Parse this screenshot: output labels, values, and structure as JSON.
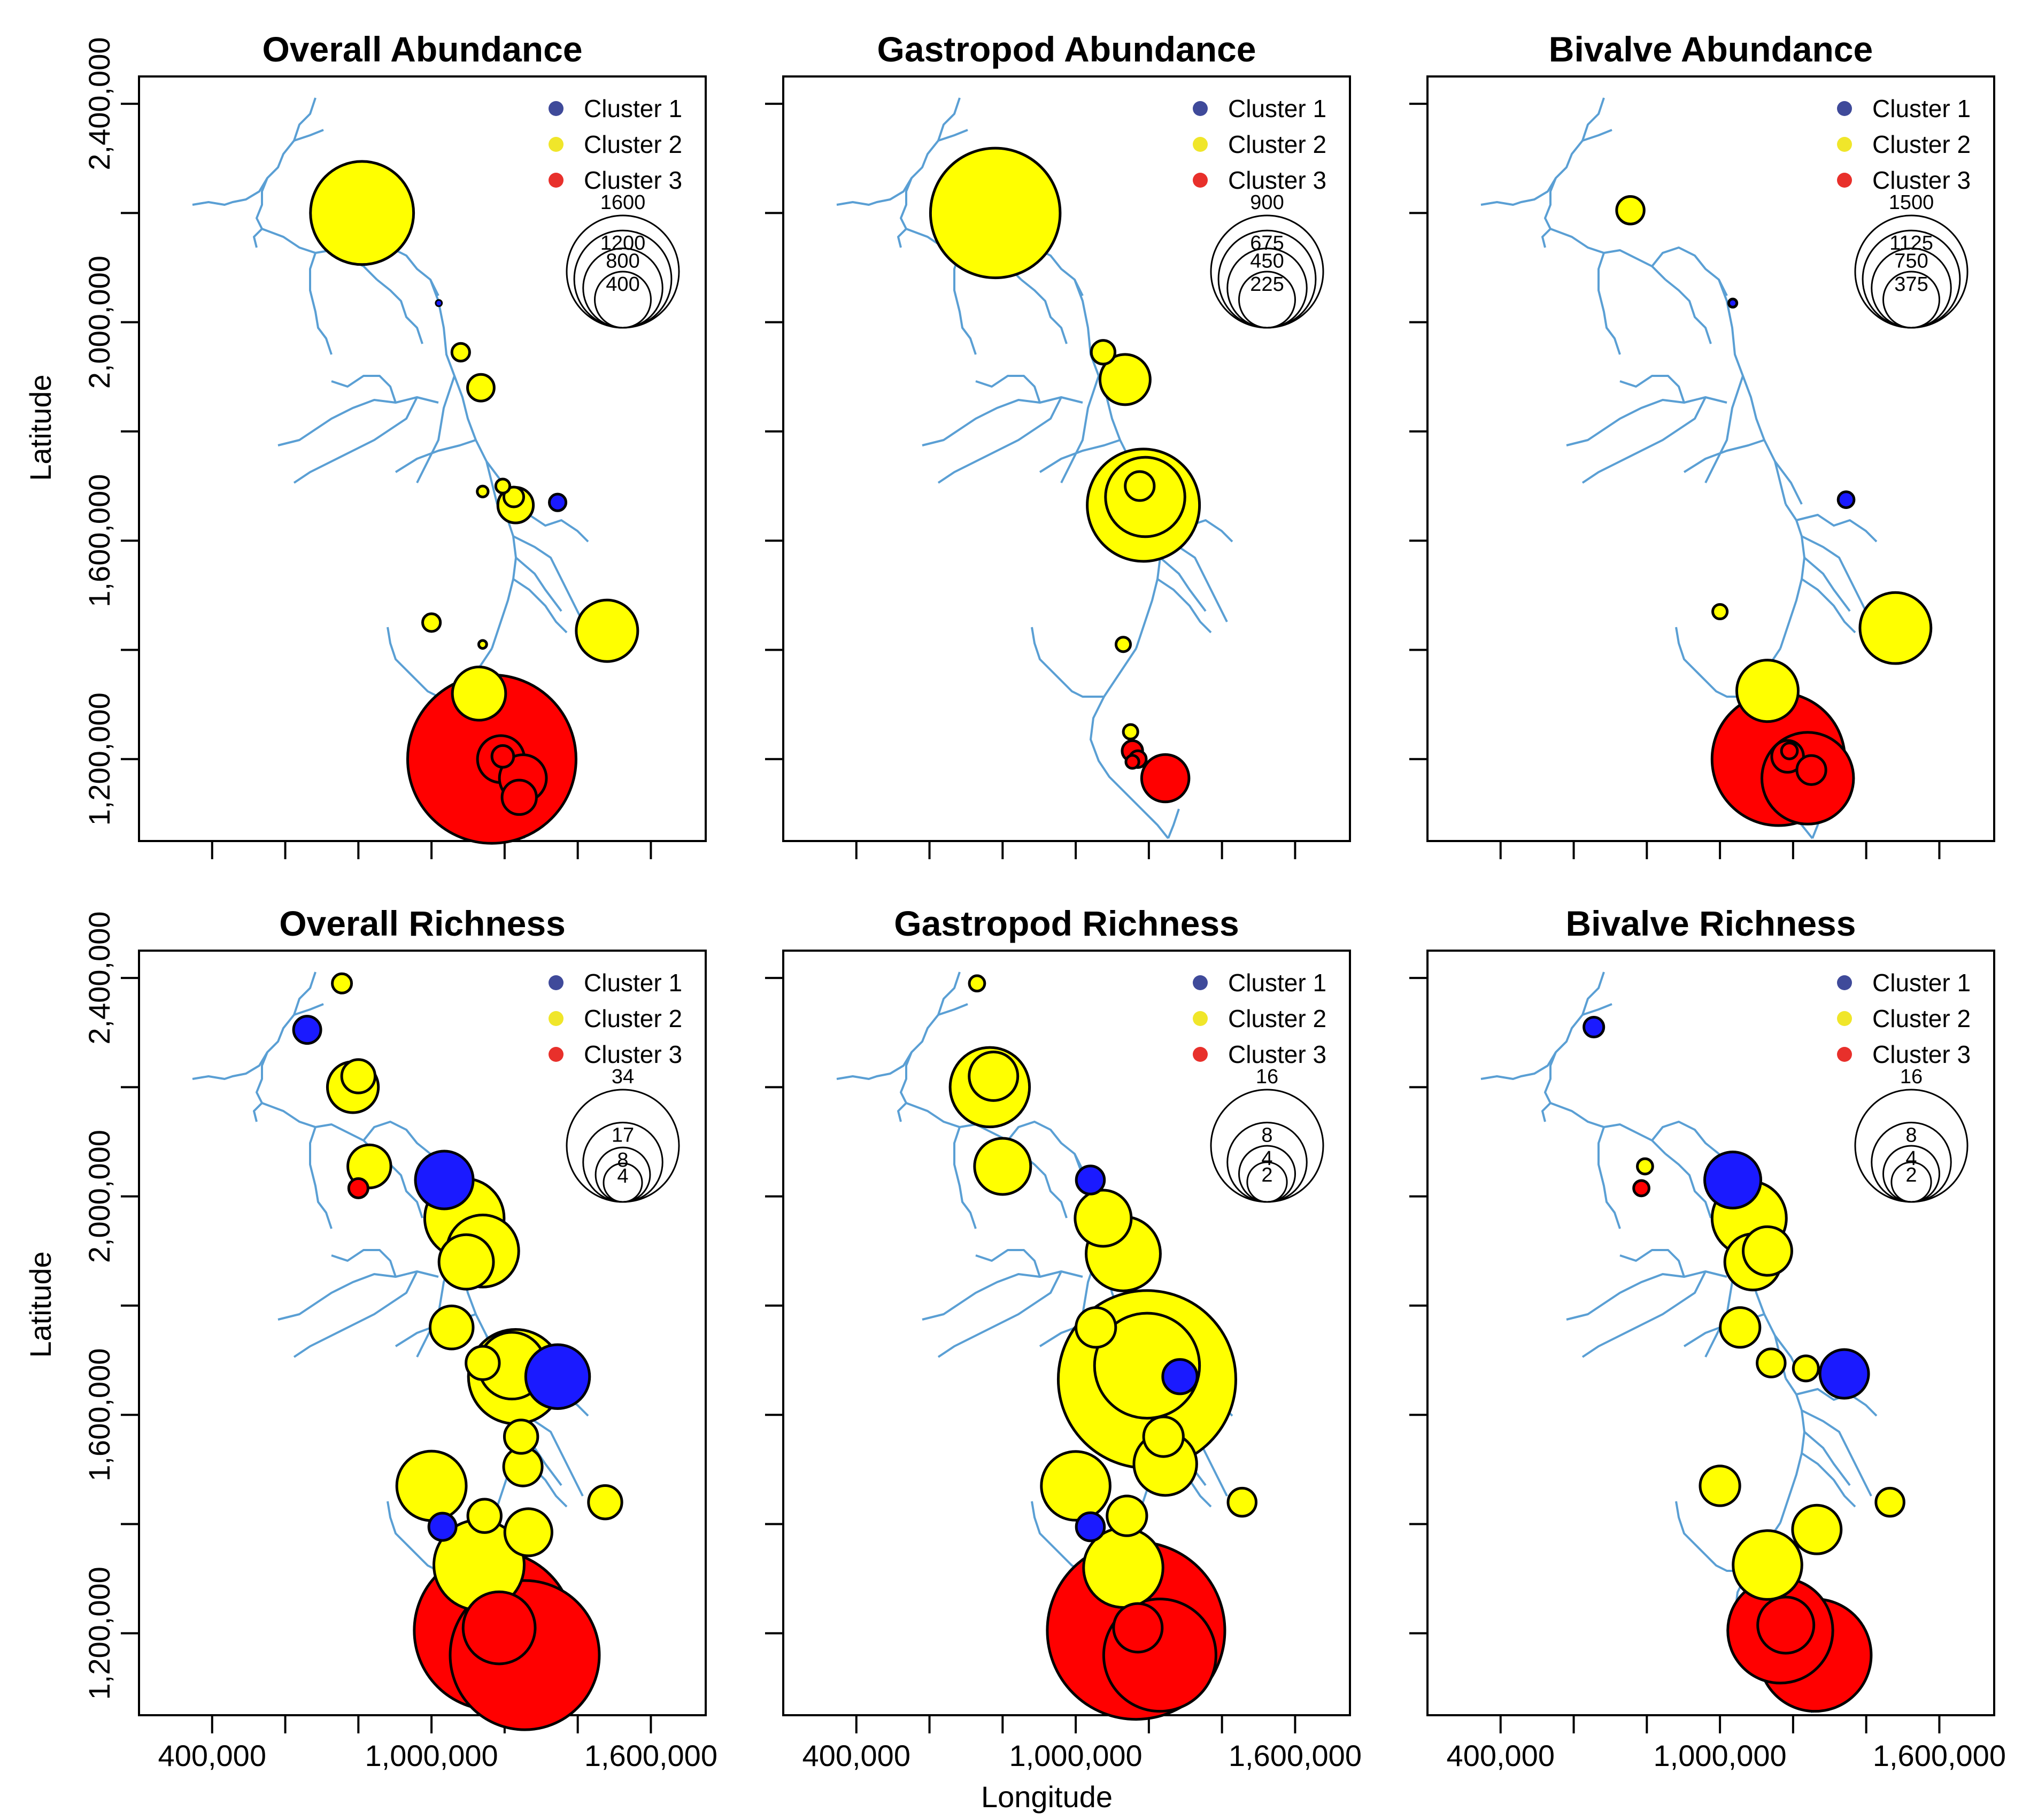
{
  "figure": {
    "xlabel": "Longitude",
    "ylabel": "Latitude"
  },
  "colors": {
    "cluster_1": "#1a1aff",
    "cluster_1_legend": "#3f4a9a",
    "cluster_2": "#ffff00",
    "cluster_2_legend": "#f0e62a",
    "cluster_3": "#ff0000",
    "cluster_3_legend": "#e8302b",
    "river": "#5a9fd4"
  },
  "x_ticks": [
    "400,000",
    "1,000,000",
    "1,600,000"
  ],
  "y_ticks": [
    "2,400,000",
    "2,000,000",
    "1,600,000",
    "1,200,000"
  ],
  "chart_data": [
    {
      "type": "scatter",
      "title": "Overall Abundance",
      "legend": [
        "Cluster 1",
        "Cluster 2",
        "Cluster 3"
      ],
      "size_legend": [
        "1600",
        "1200",
        "800",
        "400"
      ],
      "xlim": [
        200000,
        1750000
      ],
      "ylim": [
        1050000,
        2450000
      ],
      "points": [
        {
          "x": 810000,
          "y": 2200000,
          "v": 1350,
          "c": 2
        },
        {
          "x": 1020000,
          "y": 2035000,
          "v": 5,
          "c": 1
        },
        {
          "x": 1080000,
          "y": 1945000,
          "v": 40,
          "c": 2
        },
        {
          "x": 1135000,
          "y": 1880000,
          "v": 90,
          "c": 2
        },
        {
          "x": 1140000,
          "y": 1690000,
          "v": 15,
          "c": 2
        },
        {
          "x": 1195000,
          "y": 1700000,
          "v": 25,
          "c": 2
        },
        {
          "x": 1230000,
          "y": 1665000,
          "v": 160,
          "c": 2
        },
        {
          "x": 1225000,
          "y": 1680000,
          "v": 50,
          "c": 2
        },
        {
          "x": 1345000,
          "y": 1670000,
          "v": 35,
          "c": 1
        },
        {
          "x": 1000000,
          "y": 1450000,
          "v": 40,
          "c": 2
        },
        {
          "x": 1480000,
          "y": 1435000,
          "v": 480,
          "c": 2
        },
        {
          "x": 1140000,
          "y": 1410000,
          "v": 8,
          "c": 2
        },
        {
          "x": 1130000,
          "y": 1320000,
          "v": 360,
          "c": 2
        },
        {
          "x": 1165000,
          "y": 1200000,
          "v": 3600,
          "c": 3
        },
        {
          "x": 1190000,
          "y": 1200000,
          "v": 280,
          "c": 3
        },
        {
          "x": 1195000,
          "y": 1205000,
          "v": 60,
          "c": 3
        },
        {
          "x": 1250000,
          "y": 1165000,
          "v": 280,
          "c": 3
        },
        {
          "x": 1240000,
          "y": 1130000,
          "v": 150,
          "c": 3
        }
      ]
    },
    {
      "type": "scatter",
      "title": "Gastropod Abundance",
      "legend": [
        "Cluster 1",
        "Cluster 2",
        "Cluster 3"
      ],
      "size_legend": [
        "900",
        "675",
        "450",
        "225"
      ],
      "xlim": [
        200000,
        1750000
      ],
      "ylim": [
        1050000,
        2450000
      ],
      "points": [
        {
          "x": 780000,
          "y": 2200000,
          "v": 1200,
          "c": 2
        },
        {
          "x": 1075000,
          "y": 1945000,
          "v": 40,
          "c": 2
        },
        {
          "x": 1135000,
          "y": 1895000,
          "v": 180,
          "c": 2
        },
        {
          "x": 1185000,
          "y": 1665000,
          "v": 900,
          "c": 2
        },
        {
          "x": 1190000,
          "y": 1680000,
          "v": 450,
          "c": 2
        },
        {
          "x": 1175000,
          "y": 1700000,
          "v": 60,
          "c": 2
        },
        {
          "x": 1130000,
          "y": 1410000,
          "v": 15,
          "c": 2
        },
        {
          "x": 1150000,
          "y": 1250000,
          "v": 15,
          "c": 2
        },
        {
          "x": 1155000,
          "y": 1215000,
          "v": 30,
          "c": 3
        },
        {
          "x": 1170000,
          "y": 1200000,
          "v": 20,
          "c": 3
        },
        {
          "x": 1155000,
          "y": 1195000,
          "v": 12,
          "c": 3
        },
        {
          "x": 1245000,
          "y": 1165000,
          "v": 160,
          "c": 3
        }
      ]
    },
    {
      "type": "scatter",
      "title": "Bivalve Abundance",
      "legend": [
        "Cluster 1",
        "Cluster 2",
        "Cluster 3"
      ],
      "size_legend": [
        "1500",
        "1125",
        "750",
        "375"
      ],
      "xlim": [
        200000,
        1750000
      ],
      "ylim": [
        1050000,
        2450000
      ],
      "points": [
        {
          "x": 755000,
          "y": 2205000,
          "v": 90,
          "c": 2
        },
        {
          "x": 1035000,
          "y": 2035000,
          "v": 8,
          "c": 1
        },
        {
          "x": 1345000,
          "y": 1675000,
          "v": 30,
          "c": 1
        },
        {
          "x": 1000000,
          "y": 1470000,
          "v": 25,
          "c": 2
        },
        {
          "x": 1480000,
          "y": 1440000,
          "v": 600,
          "c": 2
        },
        {
          "x": 1130000,
          "y": 1325000,
          "v": 450,
          "c": 2
        },
        {
          "x": 1160000,
          "y": 1200000,
          "v": 2100,
          "c": 3
        },
        {
          "x": 1240000,
          "y": 1165000,
          "v": 1000,
          "c": 3
        },
        {
          "x": 1185000,
          "y": 1205000,
          "v": 120,
          "c": 3
        },
        {
          "x": 1190000,
          "y": 1215000,
          "v": 30,
          "c": 3
        },
        {
          "x": 1250000,
          "y": 1180000,
          "v": 100,
          "c": 3
        }
      ]
    },
    {
      "type": "scatter",
      "title": "Overall Richness",
      "legend": [
        "Cluster 1",
        "Cluster 2",
        "Cluster 3"
      ],
      "size_legend": [
        "34",
        "17",
        "8",
        "4"
      ],
      "xlim": [
        200000,
        1750000
      ],
      "ylim": [
        1050000,
        2450000
      ],
      "points": [
        {
          "x": 755000,
          "y": 2390000,
          "v": 1,
          "c": 2
        },
        {
          "x": 660000,
          "y": 2305000,
          "v": 2,
          "c": 1
        },
        {
          "x": 785000,
          "y": 2200000,
          "v": 7,
          "c": 2
        },
        {
          "x": 800000,
          "y": 2220000,
          "v": 3,
          "c": 2
        },
        {
          "x": 830000,
          "y": 2055000,
          "v": 5,
          "c": 2
        },
        {
          "x": 800000,
          "y": 2015000,
          "v": 1,
          "c": 3
        },
        {
          "x": 1035000,
          "y": 2030000,
          "v": 9,
          "c": 1
        },
        {
          "x": 1090000,
          "y": 1960000,
          "v": 17,
          "c": 2
        },
        {
          "x": 1140000,
          "y": 1900000,
          "v": 14,
          "c": 2
        },
        {
          "x": 1095000,
          "y": 1880000,
          "v": 8,
          "c": 2
        },
        {
          "x": 1055000,
          "y": 1760000,
          "v": 5,
          "c": 2
        },
        {
          "x": 1140000,
          "y": 1695000,
          "v": 3,
          "c": 2
        },
        {
          "x": 1230000,
          "y": 1670000,
          "v": 24,
          "c": 2
        },
        {
          "x": 1220000,
          "y": 1690000,
          "v": 12,
          "c": 2
        },
        {
          "x": 1345000,
          "y": 1670000,
          "v": 11,
          "c": 1
        },
        {
          "x": 1245000,
          "y": 1560000,
          "v": 3,
          "c": 2
        },
        {
          "x": 1250000,
          "y": 1505000,
          "v": 4,
          "c": 2
        },
        {
          "x": 1000000,
          "y": 1470000,
          "v": 13,
          "c": 2
        },
        {
          "x": 1475000,
          "y": 1440000,
          "v": 3,
          "c": 2
        },
        {
          "x": 1145000,
          "y": 1415000,
          "v": 3,
          "c": 2
        },
        {
          "x": 1030000,
          "y": 1395000,
          "v": 2,
          "c": 1
        },
        {
          "x": 1265000,
          "y": 1385000,
          "v": 6,
          "c": 2
        },
        {
          "x": 1130000,
          "y": 1325000,
          "v": 22,
          "c": 2
        },
        {
          "x": 1170000,
          "y": 1205000,
          "v": 68,
          "c": 3
        },
        {
          "x": 1255000,
          "y": 1160000,
          "v": 60,
          "c": 3
        },
        {
          "x": 1185000,
          "y": 1210000,
          "v": 14,
          "c": 3
        }
      ]
    },
    {
      "type": "scatter",
      "title": "Gastropod Richness",
      "legend": [
        "Cluster 1",
        "Cluster 2",
        "Cluster 3"
      ],
      "size_legend": [
        "16",
        "8",
        "4",
        "2"
      ],
      "xlim": [
        200000,
        1750000
      ],
      "ylim": [
        1050000,
        2450000
      ],
      "points": [
        {
          "x": 730000,
          "y": 2390000,
          "v": 0.3,
          "c": 2
        },
        {
          "x": 765000,
          "y": 2200000,
          "v": 8,
          "c": 2
        },
        {
          "x": 775000,
          "y": 2220000,
          "v": 3,
          "c": 2
        },
        {
          "x": 800000,
          "y": 2055000,
          "v": 4,
          "c": 2
        },
        {
          "x": 1040000,
          "y": 2030000,
          "v": 1,
          "c": 1
        },
        {
          "x": 1075000,
          "y": 1960000,
          "v": 4,
          "c": 2
        },
        {
          "x": 1130000,
          "y": 1895000,
          "v": 7,
          "c": 2
        },
        {
          "x": 1055000,
          "y": 1760000,
          "v": 2,
          "c": 2
        },
        {
          "x": 1195000,
          "y": 1665000,
          "v": 40,
          "c": 2
        },
        {
          "x": 1195000,
          "y": 1690000,
          "v": 14,
          "c": 2
        },
        {
          "x": 1285000,
          "y": 1670000,
          "v": 1.5,
          "c": 1
        },
        {
          "x": 1240000,
          "y": 1560000,
          "v": 2,
          "c": 2
        },
        {
          "x": 1245000,
          "y": 1510000,
          "v": 5,
          "c": 2
        },
        {
          "x": 1000000,
          "y": 1470000,
          "v": 6,
          "c": 2
        },
        {
          "x": 1140000,
          "y": 1415000,
          "v": 2,
          "c": 2
        },
        {
          "x": 1040000,
          "y": 1395000,
          "v": 1,
          "c": 1
        },
        {
          "x": 1455000,
          "y": 1440000,
          "v": 1,
          "c": 2
        },
        {
          "x": 1130000,
          "y": 1320000,
          "v": 8,
          "c": 2
        },
        {
          "x": 1165000,
          "y": 1205000,
          "v": 40,
          "c": 3
        },
        {
          "x": 1230000,
          "y": 1160000,
          "v": 16,
          "c": 3
        },
        {
          "x": 1170000,
          "y": 1210000,
          "v": 3,
          "c": 3
        }
      ]
    },
    {
      "type": "scatter",
      "title": "Bivalve Richness",
      "legend": [
        "Cluster 1",
        "Cluster 2",
        "Cluster 3"
      ],
      "size_legend": [
        "16",
        "8",
        "4",
        "2"
      ],
      "xlim": [
        200000,
        1750000
      ],
      "ylim": [
        1050000,
        2450000
      ],
      "points": [
        {
          "x": 655000,
          "y": 2310000,
          "v": 0.5,
          "c": 1
        },
        {
          "x": 795000,
          "y": 2055000,
          "v": 0.3,
          "c": 2
        },
        {
          "x": 785000,
          "y": 2015000,
          "v": 0.3,
          "c": 3
        },
        {
          "x": 1035000,
          "y": 2030000,
          "v": 4,
          "c": 1
        },
        {
          "x": 1080000,
          "y": 1960000,
          "v": 7,
          "c": 2
        },
        {
          "x": 1130000,
          "y": 1900000,
          "v": 3,
          "c": 2
        },
        {
          "x": 1090000,
          "y": 1880000,
          "v": 4,
          "c": 2
        },
        {
          "x": 1055000,
          "y": 1760000,
          "v": 2,
          "c": 2
        },
        {
          "x": 1140000,
          "y": 1695000,
          "v": 1,
          "c": 2
        },
        {
          "x": 1235000,
          "y": 1685000,
          "v": 0.8,
          "c": 2
        },
        {
          "x": 1340000,
          "y": 1675000,
          "v": 3,
          "c": 1
        },
        {
          "x": 1000000,
          "y": 1470000,
          "v": 2,
          "c": 2
        },
        {
          "x": 1465000,
          "y": 1440000,
          "v": 1,
          "c": 2
        },
        {
          "x": 1265000,
          "y": 1390000,
          "v": 3,
          "c": 2
        },
        {
          "x": 1130000,
          "y": 1325000,
          "v": 6,
          "c": 2
        },
        {
          "x": 1165000,
          "y": 1205000,
          "v": 14,
          "c": 3
        },
        {
          "x": 1260000,
          "y": 1160000,
          "v": 16,
          "c": 3
        },
        {
          "x": 1180000,
          "y": 1215000,
          "v": 4,
          "c": 3
        }
      ]
    }
  ]
}
